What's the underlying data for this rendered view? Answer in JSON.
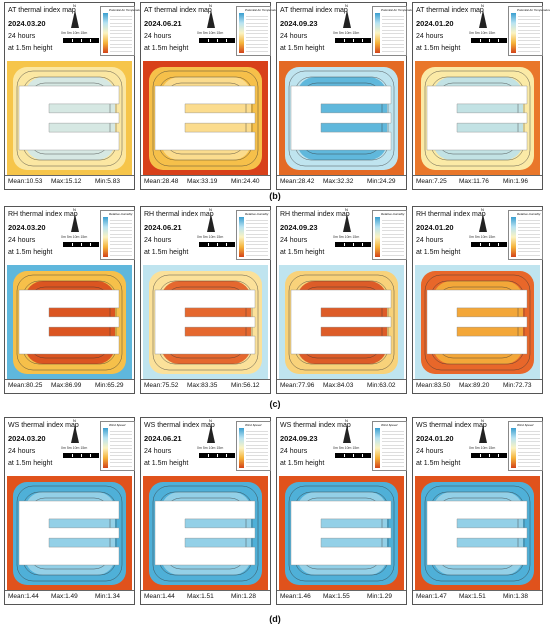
{
  "sections": [
    {
      "label": "(b)",
      "title_prefix": "AT thermal index map",
      "legend_title": "Potential Air Temperature",
      "ramp": [
        "#3a9fd0",
        "#b8e3f2",
        "#fbf3c2",
        "#f5b33a",
        "#d2431a"
      ],
      "panels": [
        {
          "date": "2024.03.20",
          "duration": "24 hours",
          "height": "at 1.5m height",
          "mean": "Mean:10.53",
          "max": "Max:15.12",
          "min": "Min:5.83"
        },
        {
          "date": "2024.06.21",
          "duration": "24 hours",
          "height": "at 1.5m height",
          "mean": "Mean:28.48",
          "max": "Max:33.19",
          "min": "Min:24.40"
        },
        {
          "date": "2024.09.23",
          "duration": "24 hours",
          "height": "at 1.5m height",
          "mean": "Mean:28.42",
          "max": "Max:32.32",
          "min": "Min:24.29"
        },
        {
          "date": "2024.01.20",
          "duration": "24 hours",
          "height": "at 1.5m height",
          "mean": "Mean:7.25",
          "max": "Max:11.76",
          "min": "Min:1.96"
        }
      ]
    },
    {
      "label": "(c)",
      "title_prefix": "RH thermal index map",
      "legend_title": "Relative Humidity",
      "ramp": [
        "#3a9fd0",
        "#b8e3f2",
        "#fbf3c2",
        "#f5b33a",
        "#d2431a"
      ],
      "panels": [
        {
          "date": "2024.03.20",
          "duration": "24 hours",
          "height": "at 1.5m height",
          "mean": "Mean:80.25",
          "max": "Max:86.99",
          "min": "Min:65.29"
        },
        {
          "date": "2024.06.21",
          "duration": "24 hours",
          "height": "at 1.5m height",
          "mean": "Mean:75.52",
          "max": "Max:83.35",
          "min": "Min:56.12"
        },
        {
          "date": "2024.09.23",
          "duration": "24 hours",
          "height": "at 1.5m height",
          "mean": "Mean:77.96",
          "max": "Max:84.03",
          "min": "Min:63.02"
        },
        {
          "date": "2024.01.20",
          "duration": "24 hours",
          "height": "at 1.5m height",
          "mean": "Mean:83.50",
          "max": "Max:89.20",
          "min": "Min:72.73"
        }
      ]
    },
    {
      "label": "(d)",
      "title_prefix": "WS thermal index map",
      "legend_title": "Wind Speed",
      "ramp": [
        "#3a9fd0",
        "#b8e3f2",
        "#fbf3c2",
        "#f5b33a",
        "#d2431a"
      ],
      "panels": [
        {
          "date": "2024.03.20",
          "duration": "24 hours",
          "height": "at 1.5m height",
          "mean": "Mean:1.44",
          "max": "Max:1.49",
          "min": "Min:1.34"
        },
        {
          "date": "2024.06.21",
          "duration": "24 hours",
          "height": "at 1.5m height",
          "mean": "Mean:1.44",
          "max": "Max:1.51",
          "min": "Min:1.28"
        },
        {
          "date": "2024.09.23",
          "duration": "24 hours",
          "height": "at 1.5m height",
          "mean": "Mean:1.46",
          "max": "Max:1.55",
          "min": "Min:1.29"
        },
        {
          "date": "2024.01.20",
          "duration": "24 hours",
          "height": "at 1.5m height",
          "mean": "Mean:1.47",
          "max": "Max:1.51",
          "min": "Min:1.38"
        }
      ]
    }
  ],
  "scale_text": "0m 5m 10m 15m",
  "north_text": "N"
}
